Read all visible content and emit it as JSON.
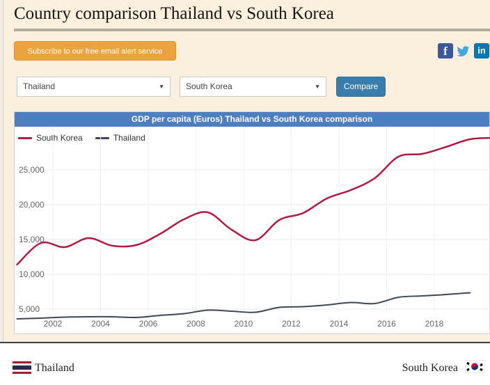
{
  "page_title": "Country comparison Thailand vs South Korea",
  "subscribe_button": "Subscribe to our free email alert service",
  "social": {
    "facebook_letter": "f",
    "linkedin_letters": "in"
  },
  "selectors": {
    "country1": "Thailand",
    "country2": "South Korea",
    "compare": "Compare"
  },
  "chart_header": "GDP per capita (Euros) Thailand vs South Korea comparison",
  "chart_data": {
    "type": "line",
    "title": "GDP per capita (Euros) Thailand vs South Korea comparison",
    "xlabel": "",
    "ylabel": "GDP per capita (Euros)",
    "x": [
      2000,
      2001,
      2002,
      2003,
      2004,
      2005,
      2006,
      2007,
      2008,
      2009,
      2010,
      2011,
      2012,
      2013,
      2014,
      2015,
      2016,
      2017,
      2018,
      2019,
      2020
    ],
    "series": [
      {
        "name": "South Korea",
        "color": "#b01a41",
        "width": 2.5,
        "values": [
          11400,
          14500,
          13900,
          15200,
          14100,
          14200,
          15800,
          17900,
          18900,
          16400,
          14900,
          17800,
          18800,
          20900,
          22100,
          23800,
          26900,
          27300,
          28300,
          29400,
          29600
        ]
      },
      {
        "name": "Thailand",
        "color": "#3c4757",
        "width": 2,
        "values": [
          3600,
          3700,
          3850,
          3900,
          3900,
          3800,
          4100,
          4350,
          4850,
          4700,
          4550,
          5250,
          5350,
          5600,
          5950,
          5800,
          6700,
          6900,
          7100,
          7350,
          null
        ]
      }
    ],
    "yticks": [
      5000,
      10000,
      15000,
      20000,
      25000
    ],
    "xticks": [
      2002,
      2004,
      2006,
      2008,
      2010,
      2012,
      2014,
      2016,
      2018
    ],
    "ylim": [
      1600,
      31200
    ],
    "xlim": [
      2000,
      2020.5
    ],
    "grid": true,
    "legend_position": "top-left"
  },
  "footer": {
    "left_label": "Thailand",
    "right_label": "South Korea"
  },
  "colors": {
    "page_background": "#fbf0dd",
    "subscribe_orange": "#eca33f",
    "compare_blue": "#3a7cab",
    "chart_header_blue": "#4d7ebf",
    "south_korea_line": "#b01a41",
    "thailand_line": "#3c4757",
    "facebook": "#3b5998",
    "twitter": "#41a7e0",
    "linkedin": "#0077b5"
  }
}
